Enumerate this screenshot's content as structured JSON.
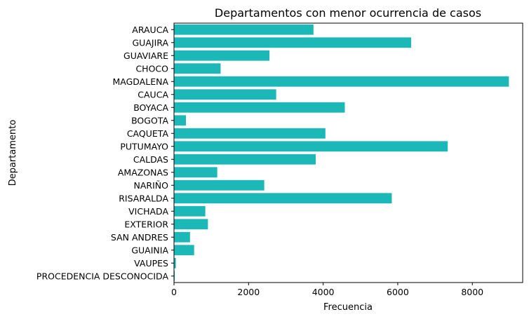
{
  "chart_data": {
    "type": "bar",
    "orientation": "horizontal",
    "title": "Departamentos con menor ocurrencia de casos",
    "xlabel": "Frecuencia",
    "ylabel": "Departamento",
    "xlim": [
      0,
      9350
    ],
    "xticks": [
      0,
      2000,
      4000,
      6000,
      8000
    ],
    "grid": false,
    "colors": {
      "bar": "#1cb8b8"
    },
    "categories": [
      "ARAUCA",
      "GUAJIRA",
      "GUAVIARE",
      "CHOCO",
      "MAGDALENA",
      "CAUCA",
      "BOYACA",
      "BOGOTA",
      "CAQUETA",
      "PUTUMAYO",
      "CALDAS",
      "AMAZONAS",
      "NARIÑO",
      "RISARALDA",
      "VICHADA",
      "EXTERIOR",
      "SAN ANDRES",
      "GUAINIA",
      "VAUPES",
      "PROCEDENCIA DESCONOCIDA"
    ],
    "values": [
      3740,
      6360,
      2560,
      1250,
      8980,
      2740,
      4580,
      320,
      4060,
      7340,
      3800,
      1160,
      2420,
      5840,
      840,
      910,
      430,
      540,
      50,
      20
    ]
  }
}
